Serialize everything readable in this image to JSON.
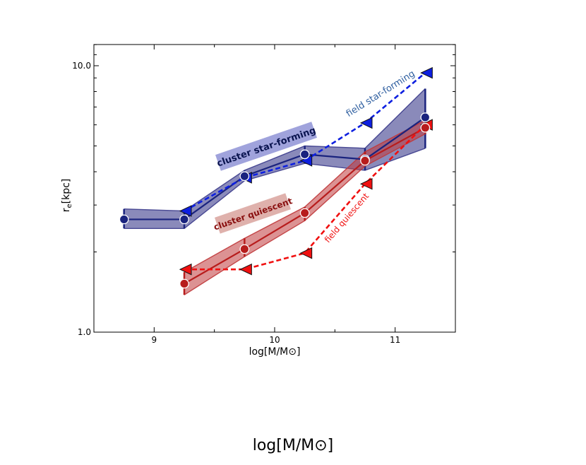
{
  "chart_data": {
    "type": "line",
    "xlabel": "log[M/M⊙]",
    "ylabel": "r",
    "ylabel_sub": "e",
    "ylabel_unit": "[kpc]",
    "xlim": [
      8.5,
      11.5
    ],
    "ylim": [
      1.0,
      12.0
    ],
    "yscale": "log",
    "x_ticks": [
      9,
      10,
      11
    ],
    "x_tick_labels": [
      "9",
      "10",
      "11"
    ],
    "y_ticks": [
      1.0,
      10.0
    ],
    "y_tick_labels": [
      "1.0",
      "10.0"
    ],
    "series": [
      {
        "name": "cluster star-forming",
        "style": "solid-band",
        "color": "#1a237e",
        "band_color": "#3c3c8c",
        "x": [
          8.75,
          9.25,
          9.75,
          10.25,
          10.75,
          11.25
        ],
        "y": [
          2.65,
          2.65,
          3.85,
          4.65,
          4.45,
          6.4
        ],
        "y_low": [
          2.45,
          2.45,
          3.7,
          4.3,
          4.05,
          4.9
        ],
        "y_high": [
          2.9,
          2.85,
          4.05,
          5.0,
          4.9,
          8.2
        ]
      },
      {
        "name": "cluster quiescent",
        "style": "solid-band",
        "color": "#b71c1c",
        "band_color": "#c0393b",
        "x": [
          9.25,
          9.75,
          10.25,
          10.75,
          11.25
        ],
        "y": [
          1.52,
          2.05,
          2.8,
          4.4,
          5.85
        ],
        "y_low": [
          1.38,
          1.92,
          2.62,
          4.2,
          5.55
        ],
        "y_high": [
          1.68,
          2.25,
          2.95,
          4.75,
          6.25
        ]
      },
      {
        "name": "field star-forming",
        "style": "dashed",
        "color": "#0d1fe0",
        "x": [
          9.25,
          9.75,
          10.25,
          10.75,
          11.25
        ],
        "y": [
          2.85,
          3.8,
          4.4,
          6.1,
          9.4
        ]
      },
      {
        "name": "field quiescent",
        "style": "dashed",
        "color": "#f01010",
        "x": [
          9.25,
          9.75,
          10.25,
          10.75,
          11.25
        ],
        "y": [
          1.72,
          1.72,
          1.98,
          3.6,
          6.0
        ]
      }
    ],
    "annotations": [
      {
        "text": "cluster star-forming",
        "color": "#0a1450",
        "box_color": "#8f93d6"
      },
      {
        "text": "cluster quiescent",
        "color": "#8a1010",
        "box_color": "#d9a39e"
      },
      {
        "text": "field star-forming",
        "color": "#2f5fa0"
      },
      {
        "text": "field quiescent",
        "color": "#f01010"
      }
    ]
  },
  "bottom_label": "log[M/M⊙]"
}
